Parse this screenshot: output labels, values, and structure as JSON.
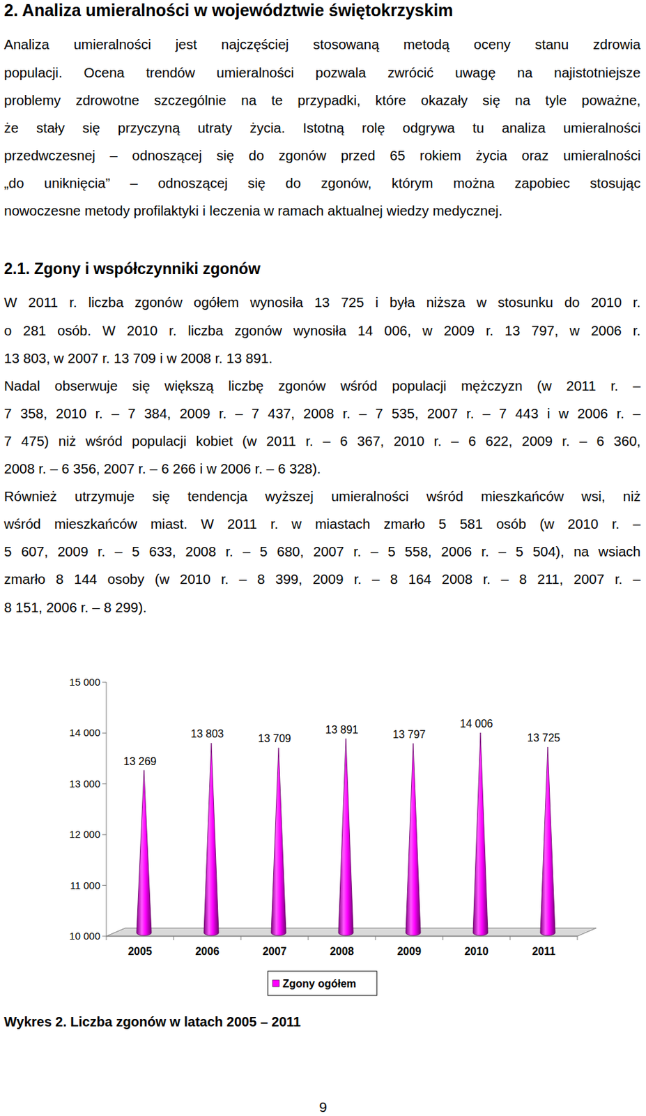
{
  "header": {
    "title": "2. Analiza umieralności w województwie świętokrzyskim"
  },
  "intro": {
    "paragraphs": [
      {
        "lines": [
          "Analiza umieralności jest najczęściej stosowaną metodą oceny stanu zdrowia",
          "populacji. Ocena trendów umieralności pozwala zwrócić uwagę na najistotniejsze",
          "problemy zdrowotne szczególnie na te przypadki, które okazały się na tyle poważne,",
          "że stały się przyczyną utraty życia. Istotną rolę odgrywa tu analiza umieralności",
          "przedwczesnej – odnoszącej się do zgonów przed 65 rokiem życia oraz umieralności",
          "„do uniknięcia” – odnoszącej się do zgonów, którym można zapobiec stosując",
          "nowoczesne metody profilaktyki i leczenia w ramach aktualnej wiedzy medycznej."
        ]
      }
    ]
  },
  "section": {
    "title": "2.1. Zgony i współczynniki zgonów",
    "paragraphs": [
      {
        "lines": [
          "W 2011 r. liczba zgonów ogółem wynosiła 13 725 i była niższa w stosunku do 2010 r.",
          "o 281 osób. W 2010 r. liczba zgonów wynosiła 14 006, w 2009 r. 13 797, w 2006 r.",
          "13 803, w 2007 r. 13 709 i w 2008 r. 13 891."
        ]
      },
      {
        "lines": [
          "Nadal obserwuje się większą liczbę zgonów wśród populacji mężczyzn (w 2011 r. –",
          "7 358, 2010 r. – 7 384, 2009 r. – 7 437, 2008 r. – 7 535, 2007 r. – 7 443 i w 2006 r. –",
          "7 475) niż wśród populacji kobiet (w 2011 r. – 6 367, 2010 r. – 6 622, 2009 r. – 6 360,",
          "2008 r. – 6 356, 2007 r. – 6 266 i w 2006 r. – 6 328)."
        ]
      },
      {
        "lines": [
          "Również utrzymuje się tendencja wyższej umieralności wśród mieszkańców wsi, niż",
          "wśród mieszkańców miast. W 2011 r. w miastach zmarło 5 581 osób (w 2010 r. –",
          "5 607, 2009 r. – 5 633, 2008 r. – 5 680, 2007 r. – 5 558, 2006 r. – 5 504), na wsiach",
          "zmarło 8 144 osoby (w 2010 r. – 8 399, 2009 r. – 8 164 2008 r. – 8 211, 2007 r. –",
          "8 151, 2006 r. – 8 299)."
        ]
      }
    ]
  },
  "chart_data": {
    "type": "bar",
    "categories": [
      "2005",
      "2006",
      "2007",
      "2008",
      "2009",
      "2010",
      "2011"
    ],
    "series": [
      {
        "name": "Zgony ogółem",
        "color": "#ff00ff",
        "values": [
          13269,
          13803,
          13709,
          13891,
          13797,
          14006,
          13725
        ],
        "value_labels": [
          "13 269",
          "13 803",
          "13 709",
          "13 891",
          "13 797",
          "14 006",
          "13 725"
        ]
      }
    ],
    "ylim": [
      10000,
      15000
    ],
    "yticks": [
      {
        "value": 10000,
        "label": "10 000"
      },
      {
        "value": 11000,
        "label": "11 000"
      },
      {
        "value": 12000,
        "label": "12 000"
      },
      {
        "value": 13000,
        "label": "13 000"
      },
      {
        "value": 14000,
        "label": "14 000"
      },
      {
        "value": 15000,
        "label": "15 000"
      }
    ],
    "grid": false,
    "legend": "bottom",
    "data_labels": true
  },
  "caption": "Wykres 2. Liczba zgonów w latach 2005 – 2011",
  "page_number": 9
}
